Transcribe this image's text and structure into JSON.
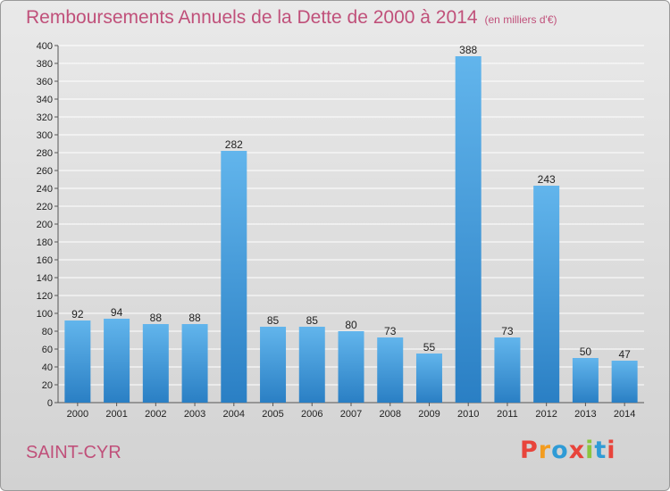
{
  "title": "Remboursements Annuels de la Dette de 2000 à 2014",
  "subtitle": "(en milliers d'€)",
  "city": "SAINT-CYR",
  "logo": "Proxiti",
  "logo_colors": [
    "#e8443b",
    "#f39c1f",
    "#2f9bd6",
    "#e8443b",
    "#8bc53f",
    "#2f9bd6",
    "#e8443b"
  ],
  "colors": {
    "title": "#c0507a",
    "bar_top": "#62b5ec",
    "bar_bottom": "#2a7fc4",
    "grid": "#ffffff"
  },
  "chart_data": {
    "type": "bar",
    "categories": [
      "2000",
      "2001",
      "2002",
      "2003",
      "2004",
      "2005",
      "2006",
      "2007",
      "2008",
      "2009",
      "2010",
      "2011",
      "2012",
      "2013",
      "2014"
    ],
    "values": [
      92,
      94,
      88,
      88,
      282,
      85,
      85,
      80,
      73,
      55,
      388,
      73,
      243,
      50,
      47
    ],
    "ylim": [
      0,
      400
    ],
    "ytick_step": 20,
    "grid": true,
    "legend": "none"
  }
}
